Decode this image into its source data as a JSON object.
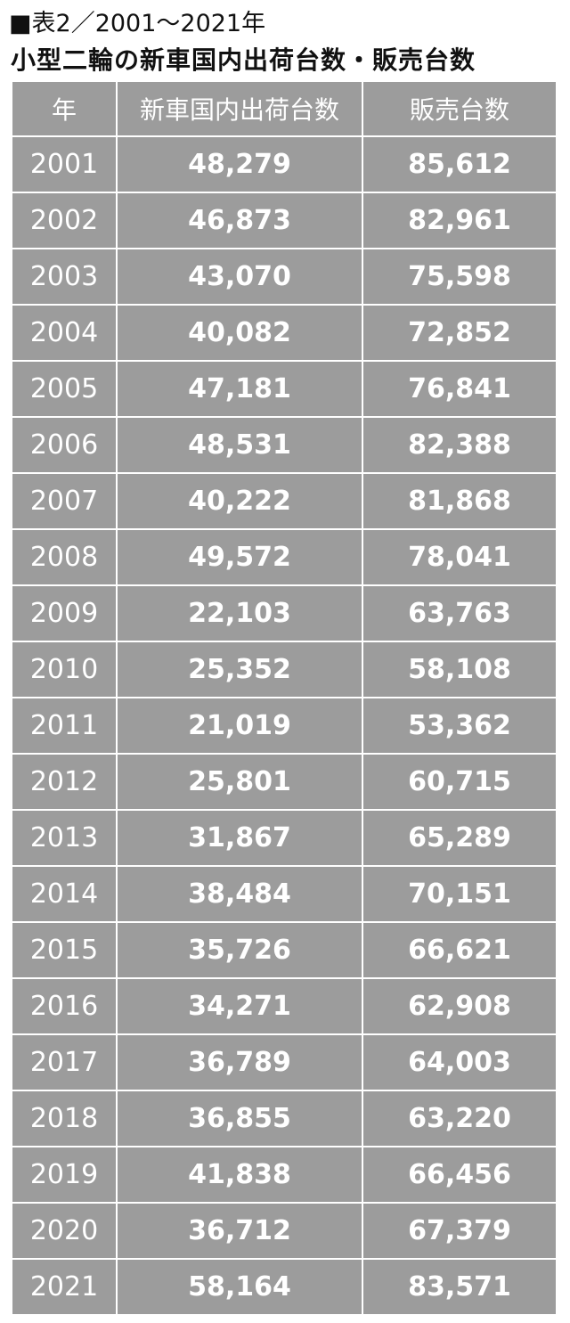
{
  "header": {
    "title": "■表2／2001～2021年",
    "subtitle": "小型二輪の新車国内出荷台数・販売台数"
  },
  "table": {
    "columns": [
      "年",
      "新車国内出荷台数",
      "販売台数"
    ],
    "rows": [
      [
        "2001",
        "48,279",
        "85,612"
      ],
      [
        "2002",
        "46,873",
        "82,961"
      ],
      [
        "2003",
        "43,070",
        "75,598"
      ],
      [
        "2004",
        "40,082",
        "72,852"
      ],
      [
        "2005",
        "47,181",
        "76,841"
      ],
      [
        "2006",
        "48,531",
        "82,388"
      ],
      [
        "2007",
        "40,222",
        "81,868"
      ],
      [
        "2008",
        "49,572",
        "78,041"
      ],
      [
        "2009",
        "22,103",
        "63,763"
      ],
      [
        "2010",
        "25,352",
        "58,108"
      ],
      [
        "2011",
        "21,019",
        "53,362"
      ],
      [
        "2012",
        "25,801",
        "60,715"
      ],
      [
        "2013",
        "31,867",
        "65,289"
      ],
      [
        "2014",
        "38,484",
        "70,151"
      ],
      [
        "2015",
        "35,726",
        "66,621"
      ],
      [
        "2016",
        "34,271",
        "62,908"
      ],
      [
        "2017",
        "36,789",
        "64,003"
      ],
      [
        "2018",
        "36,855",
        "63,220"
      ],
      [
        "2019",
        "41,838",
        "66,456"
      ],
      [
        "2020",
        "36,712",
        "67,379"
      ],
      [
        "2021",
        "58,164",
        "83,571"
      ]
    ]
  }
}
